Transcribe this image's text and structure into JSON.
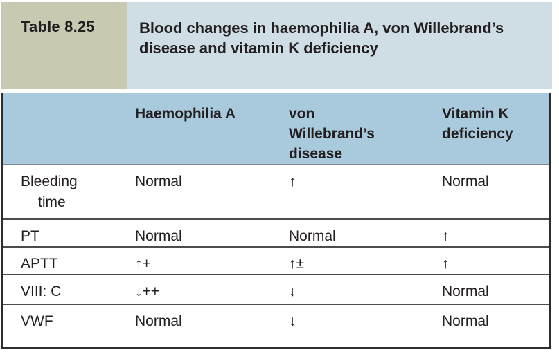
{
  "caption": {
    "table_label": "Table 8.25",
    "title": "Blood changes in haemophilia A, von Willebrand’s disease and vitamin K deficiency"
  },
  "table": {
    "columns": {
      "c1": "Haemophilia A",
      "c2": "von Willebrand’s disease",
      "c3": "Vitamin K deficiency"
    },
    "rows": [
      {
        "label": "Bleeding time",
        "values": [
          "Normal",
          "↑",
          "Normal"
        ]
      },
      {
        "label": "PT",
        "values": [
          "Normal",
          "Normal",
          "↑"
        ]
      },
      {
        "label": "APTT",
        "values": [
          "↑+",
          "↑±",
          "↑"
        ]
      },
      {
        "label": "VIII: C",
        "values": [
          "↓++",
          "↓",
          "Normal"
        ]
      },
      {
        "label": "VWF",
        "values": [
          "Normal",
          "↓",
          "Normal"
        ]
      }
    ]
  },
  "colors": {
    "caption_tab_background": "#c9c9b1",
    "caption_title_background": "#cfdde4",
    "header_row_background": "#a8cadc",
    "text": "#231f20",
    "outer_border": "#2d2d2d",
    "row_separator": "#4c4c4c",
    "header_separator": "#7d8c96"
  }
}
